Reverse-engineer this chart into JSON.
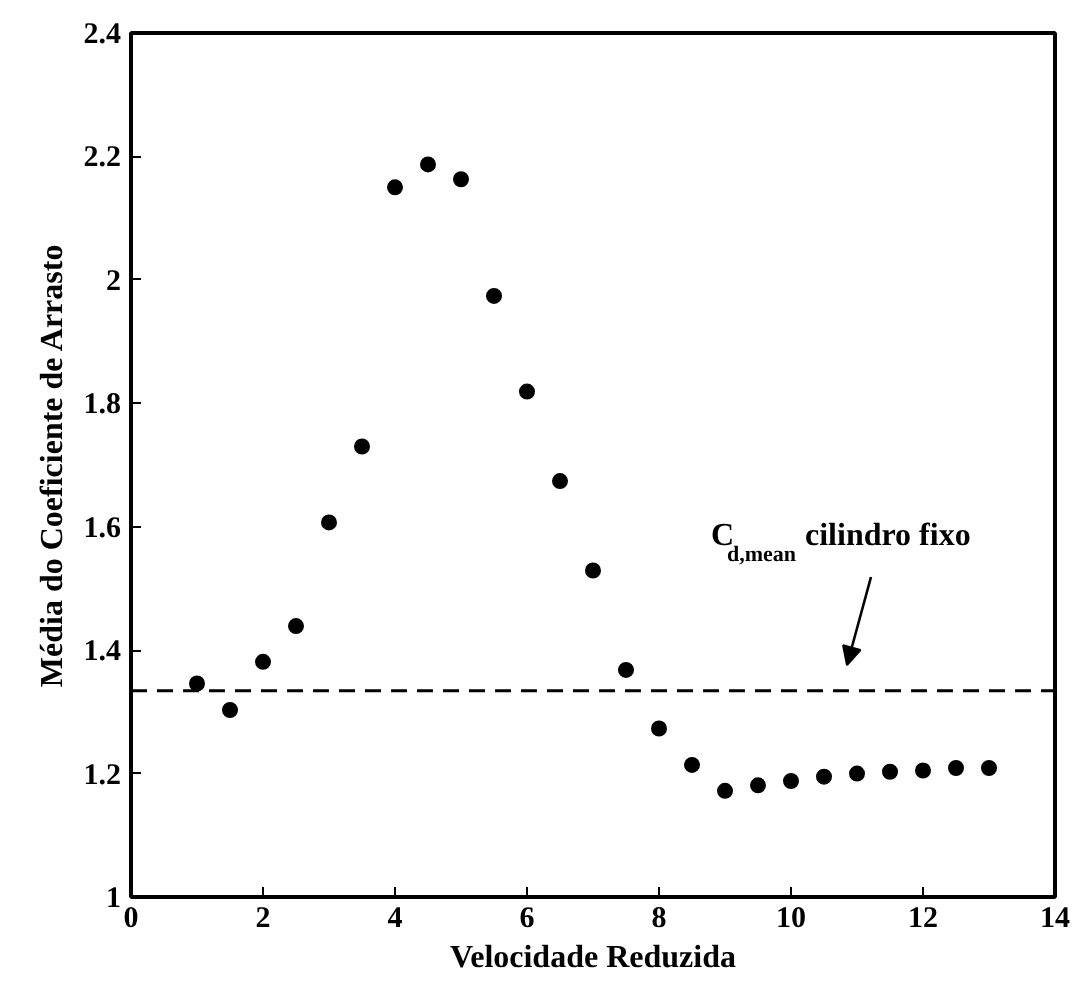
{
  "chart_data": {
    "type": "scatter",
    "xlabel": "Velocidade Reduzida",
    "ylabel": "Média do Coeficiente de Arrasto",
    "x": [
      1,
      1.5,
      2,
      2.5,
      3,
      3.5,
      4,
      4.5,
      5,
      5.5,
      6,
      6.5,
      7,
      7.5,
      8,
      8.5,
      9,
      9.5,
      10,
      10.5,
      11,
      11.5,
      12,
      12.5,
      13
    ],
    "series": [
      {
        "color": "#000000",
        "values": [
          1.346,
          1.303,
          1.381,
          1.439,
          1.607,
          1.73,
          2.15,
          2.187,
          2.163,
          1.974,
          1.819,
          1.674,
          1.529,
          1.368,
          1.273,
          1.214,
          1.172,
          1.181,
          1.188,
          1.195,
          1.2,
          1.203,
          1.205,
          1.209,
          1.209
        ]
      }
    ],
    "marker": "circle",
    "xlim": [
      0,
      14
    ],
    "xticks": [
      0,
      2,
      4,
      6,
      8,
      10,
      12,
      14
    ],
    "ylim": [
      1,
      2.4
    ],
    "yticks": [
      1,
      1.2,
      1.4,
      1.6,
      1.8,
      2,
      2.2,
      2.4
    ],
    "grid": false,
    "ref_lines": [
      {
        "axis": "y",
        "value": 1.334,
        "color": "#000000",
        "line_style": "dashed"
      }
    ],
    "annotations": [
      "C$_{d,mean}$ cilindro fixo"
    ]
  }
}
